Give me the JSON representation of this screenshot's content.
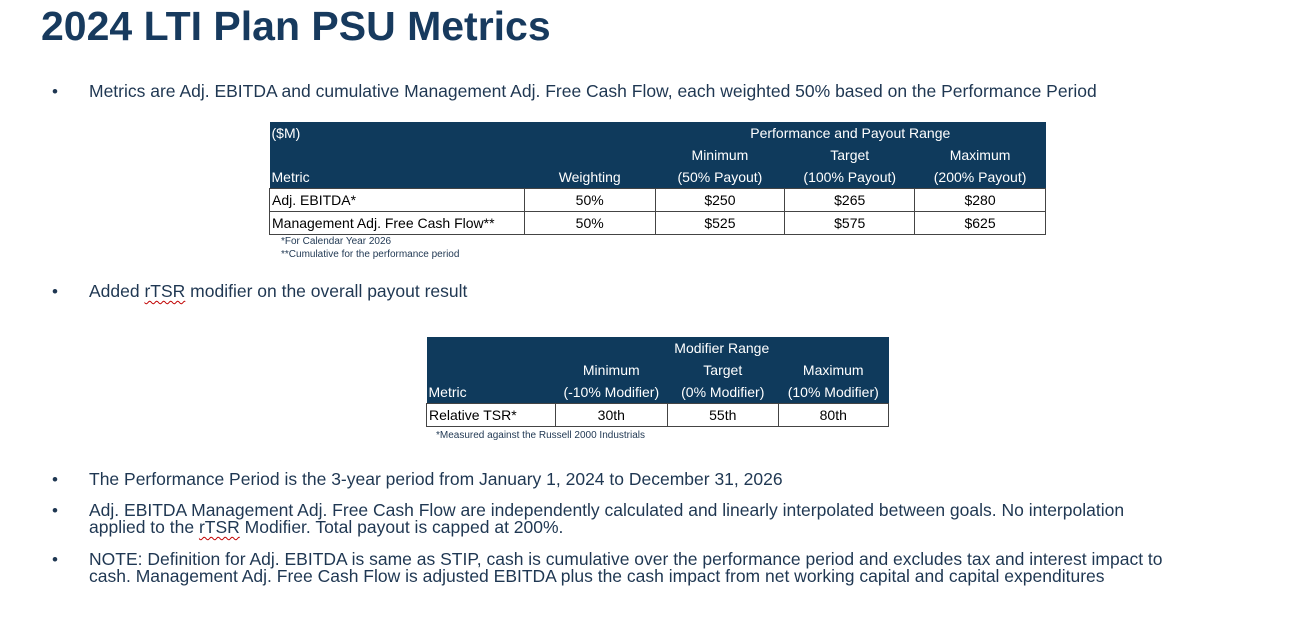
{
  "title": "2024 LTI Plan PSU Metrics",
  "bullets": {
    "b1": "Metrics are Adj. EBITDA and cumulative Management Adj. Free Cash Flow, each weighted 50% based on the Performance Period",
    "b2_pre": "Added ",
    "b2_mark": "rTSR",
    "b2_post": " modifier on the overall payout result",
    "b3": "The Performance Period is the 3-year period from January 1, 2024 to December 31, 2026",
    "b4_line1": "Adj. EBITDA Management Adj. Free Cash Flow are independently calculated and linearly interpolated between goals.  No interpolation",
    "b4_line2_pre": "applied to the ",
    "b4_line2_mark": "rTSR",
    "b4_line2_post": " Modifier.  Total payout is capped at 200%.",
    "b5_line1": "NOTE: Definition for Adj. EBITDA is same as STIP, cash is cumulative over the performance period and excludes tax and interest impact to",
    "b5_line2": "cash.  Management Adj. Free Cash Flow is adjusted EBITDA plus the cash impact from net working capital and capital expenditures"
  },
  "bullet_glyph": "•",
  "table1": {
    "unit": "($M)",
    "group_header": "Performance and Payout Range",
    "headers": {
      "metric": "Metric",
      "weighting": "Weighting",
      "min_top": "Minimum",
      "min_bottom": "(50% Payout)",
      "target_top": "Target",
      "target_bottom": "(100% Payout)",
      "max_top": "Maximum",
      "max_bottom": "(200% Payout)"
    },
    "rows": [
      {
        "metric": "Adj. EBITDA*",
        "weighting": "50%",
        "minimum": "$250",
        "target": "$265",
        "maximum": "$280"
      },
      {
        "metric": "Management Adj. Free Cash Flow**",
        "weighting": "50%",
        "minimum": "$525",
        "target": "$575",
        "maximum": "$625"
      }
    ],
    "footnote1": "*For Calendar Year 2026",
    "footnote2": "**Cumulative for the performance period"
  },
  "table2": {
    "group_header": "Modifier Range",
    "headers": {
      "metric": "Metric",
      "min_top": "Minimum",
      "min_bottom": "(-10% Modifier)",
      "target_top": "Target",
      "target_bottom": "(0% Modifier)",
      "max_top": "Maximum",
      "max_bottom": "(10% Modifier)"
    },
    "rows": [
      {
        "metric": "Relative TSR*",
        "minimum": "30th",
        "target": "55th",
        "maximum": "80th"
      }
    ],
    "footnote": "*Measured against the Russell 2000 Industrials"
  }
}
